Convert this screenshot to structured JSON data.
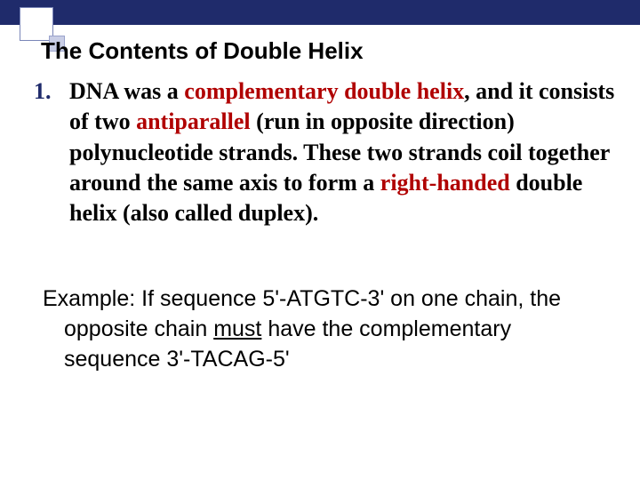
{
  "banner": {
    "color": "#1f2b6b"
  },
  "title": "The Contents of Double Helix",
  "list": {
    "number": "1.",
    "seg1": "DNA was a ",
    "red1": "complementary double helix",
    "seg2": ", and it consists of two ",
    "red2": "antiparallel",
    "seg3": " (run in opposite direction) polynucleotide strands. These two strands coil together around the same axis to form a ",
    "red3": "right-handed",
    "seg4": " double helix (also called duplex)."
  },
  "example": {
    "seg1": "Example: If sequence 5'-ATGTC-3' on one chain, the opposite chain ",
    "must": "must",
    "seg2": " have the complementary sequence 3'-TACAG-5'"
  }
}
